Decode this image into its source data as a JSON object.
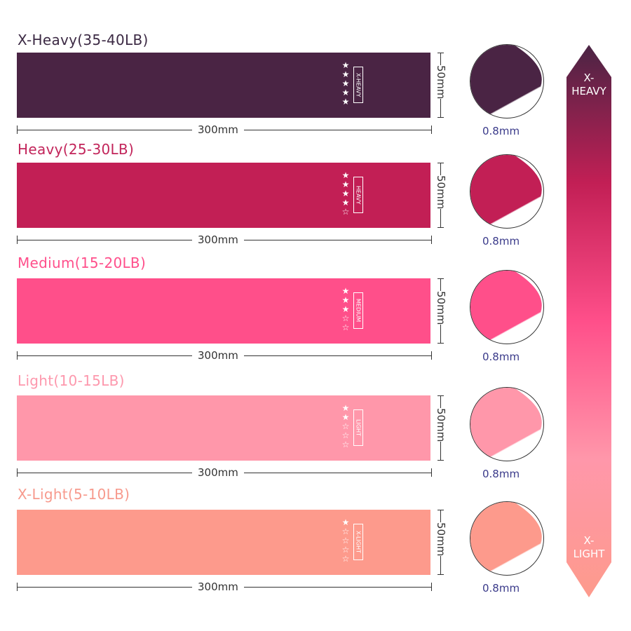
{
  "bands": [
    {
      "title": "X-Heavy(35-40LB)",
      "tag": "X-HEAVY",
      "filled_stars": 5,
      "total_stars": 5,
      "length": "300mm",
      "width": "50mm",
      "thickness": "0.8mm",
      "color": "#4a2444",
      "title_color": "#3c2a44"
    },
    {
      "title": "Heavy(25-30LB)",
      "tag": "HEAVY",
      "filled_stars": 4,
      "total_stars": 5,
      "length": "300mm",
      "width": "50mm",
      "thickness": "0.8mm",
      "color": "#c21f55",
      "title_color": "#c2245a"
    },
    {
      "title": "Medium(15-20LB)",
      "tag": "MEDIUM",
      "filled_stars": 3,
      "total_stars": 5,
      "length": "300mm",
      "width": "50mm",
      "thickness": "0.8mm",
      "color": "#ff4f8a",
      "title_color": "#ff4f8b"
    },
    {
      "title": "Light(10-15LB)",
      "tag": "LIGHT",
      "filled_stars": 2,
      "total_stars": 5,
      "length": "300mm",
      "width": "50mm",
      "thickness": "0.8mm",
      "color": "#ff97aa",
      "title_color": "#fd98ad"
    },
    {
      "title": "X-Light(5-10LB)",
      "tag": "X-LIGHT",
      "filled_stars": 1,
      "total_stars": 5,
      "length": "300mm",
      "width": "50mm",
      "thickness": "0.8mm",
      "color": "#fd9a8c",
      "title_color": "#f79a8d"
    }
  ],
  "scale": {
    "top_label": "X-\nHEAVY",
    "bottom_label": "X-\nLIGHT",
    "gradient": [
      "#4a2444",
      "#c21f55",
      "#ff4f8a",
      "#ff97aa",
      "#fd9a8c"
    ]
  }
}
